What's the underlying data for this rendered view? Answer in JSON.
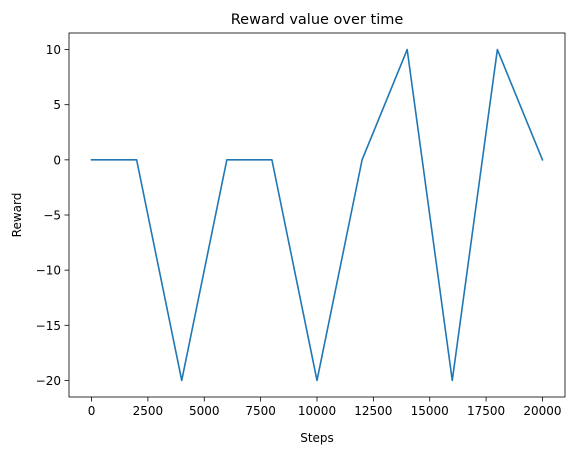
{
  "chart_data": {
    "type": "line",
    "title": "Reward value over time",
    "xlabel": "Steps",
    "ylabel": "Reward",
    "xlim": [
      -1000,
      21000
    ],
    "ylim": [
      -21.5,
      11.5
    ],
    "xticks": [
      0,
      2500,
      5000,
      7500,
      10000,
      12500,
      15000,
      17500,
      20000
    ],
    "xtick_labels": [
      "0",
      "2500",
      "5000",
      "7500",
      "10000",
      "12500",
      "15000",
      "17500",
      "20000"
    ],
    "yticks": [
      10,
      5,
      0,
      -5,
      -10,
      -15,
      -20
    ],
    "ytick_labels": [
      "10",
      "5",
      "0",
      "−5",
      "−10",
      "−15",
      "−20"
    ],
    "grid": false,
    "series": [
      {
        "color": "#1f77b4",
        "x": [
          0,
          2000,
          4000,
          6000,
          8000,
          10000,
          12000,
          14000,
          16000,
          18000,
          20000
        ],
        "y": [
          0,
          0,
          -20,
          0,
          0,
          -20,
          0,
          10,
          -20,
          10,
          0
        ]
      }
    ]
  }
}
